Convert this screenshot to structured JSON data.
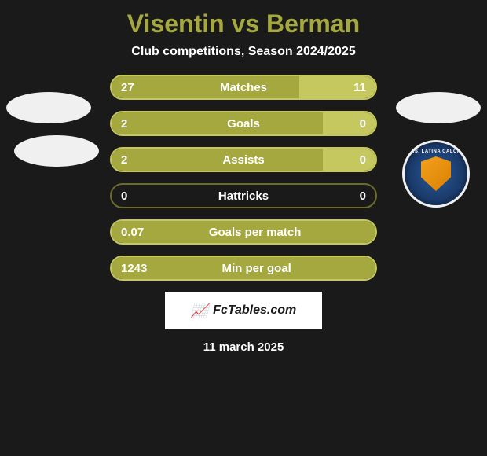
{
  "title": "Visentin vs Berman",
  "subtitle": "Club competitions, Season 2024/2025",
  "date": "11 march 2025",
  "branding": "FcTables.com",
  "badge_text": "U.S. LATINA CALCIO",
  "colors": {
    "background": "#1a1a1a",
    "title_color": "#a5a83f",
    "bar_left": "#a5a83f",
    "bar_right": "#c5c85f",
    "bar_border": "#c5c85f",
    "bar_border_dark": "#6a6c2a",
    "text": "#ffffff"
  },
  "bars": [
    {
      "label": "Matches",
      "left_value": "27",
      "right_value": "11",
      "left_pct": 71,
      "right_pct": 29,
      "type": "split"
    },
    {
      "label": "Goals",
      "left_value": "2",
      "right_value": "0",
      "left_pct": 80,
      "right_pct": 20,
      "type": "split"
    },
    {
      "label": "Assists",
      "left_value": "2",
      "right_value": "0",
      "left_pct": 80,
      "right_pct": 20,
      "type": "split"
    },
    {
      "label": "Hattricks",
      "left_value": "0",
      "right_value": "0",
      "left_pct": 0,
      "right_pct": 0,
      "type": "empty"
    },
    {
      "label": "Goals per match",
      "left_value": "0.07",
      "right_value": "",
      "left_pct": 100,
      "right_pct": 0,
      "type": "full"
    },
    {
      "label": "Min per goal",
      "left_value": "1243",
      "right_value": "",
      "left_pct": 100,
      "right_pct": 0,
      "type": "full"
    }
  ]
}
